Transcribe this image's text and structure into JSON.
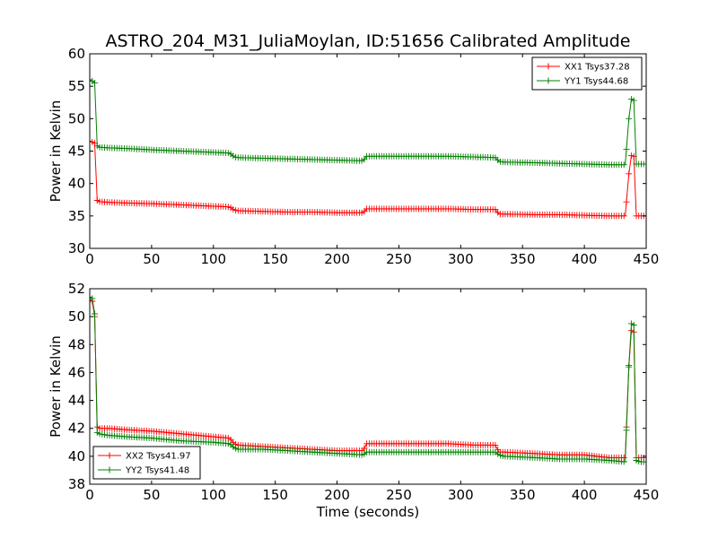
{
  "chart_data": [
    {
      "type": "line",
      "title": "ASTRO_204_M31_JuliaMoylan, ID:51656 Calibrated Amplitude",
      "xlabel": "",
      "ylabel": "Power in Kelvin",
      "xlim": [
        0,
        450
      ],
      "ylim": [
        30,
        60
      ],
      "xticks": [
        0,
        50,
        100,
        150,
        200,
        250,
        300,
        350,
        400,
        450
      ],
      "yticks": [
        30,
        35,
        40,
        45,
        50,
        55,
        60
      ],
      "grid": false,
      "legend_position": "top-right",
      "series": [
        {
          "name": "XX1 Tsys37.28",
          "color": "#ff0000",
          "x": [
            0,
            2,
            4,
            6,
            8,
            15,
            30,
            50,
            75,
            100,
            113,
            117,
            120,
            140,
            160,
            180,
            200,
            221,
            224,
            230,
            250,
            270,
            290,
            310,
            328,
            331,
            335,
            360,
            380,
            400,
            420,
            433,
            436,
            438,
            440,
            442,
            445,
            450
          ],
          "values": [
            46.5,
            46.4,
            46.2,
            37.4,
            37.2,
            37.1,
            37.0,
            36.9,
            36.7,
            36.5,
            36.4,
            35.9,
            35.8,
            35.7,
            35.6,
            35.6,
            35.5,
            35.5,
            36.1,
            36.1,
            36.1,
            36.1,
            36.1,
            36.0,
            36.0,
            35.3,
            35.3,
            35.2,
            35.2,
            35.1,
            35.0,
            35.0,
            41.5,
            44.3,
            44.2,
            35.0,
            35.0,
            35.0
          ]
        },
        {
          "name": "YY1 Tsys44.68",
          "color": "#008000",
          "x": [
            0,
            2,
            4,
            6,
            8,
            15,
            30,
            50,
            75,
            100,
            113,
            117,
            120,
            140,
            160,
            180,
            200,
            221,
            224,
            230,
            250,
            270,
            290,
            310,
            328,
            331,
            335,
            360,
            380,
            400,
            420,
            433,
            436,
            438,
            440,
            442,
            445,
            450
          ],
          "values": [
            56.0,
            55.8,
            55.5,
            45.8,
            45.6,
            45.5,
            45.4,
            45.2,
            45.0,
            44.8,
            44.7,
            44.1,
            44.0,
            43.9,
            43.8,
            43.7,
            43.6,
            43.5,
            44.2,
            44.2,
            44.2,
            44.2,
            44.2,
            44.1,
            44.0,
            43.4,
            43.3,
            43.2,
            43.1,
            43.0,
            42.9,
            42.9,
            50.0,
            53.0,
            52.8,
            43.0,
            43.0,
            43.0
          ]
        }
      ]
    },
    {
      "type": "line",
      "title": "",
      "xlabel": "Time (seconds)",
      "ylabel": "Power in Kelvin",
      "xlim": [
        0,
        450
      ],
      "ylim": [
        38,
        52
      ],
      "xticks": [
        0,
        50,
        100,
        150,
        200,
        250,
        300,
        350,
        400,
        450
      ],
      "yticks": [
        38,
        40,
        42,
        44,
        46,
        48,
        50,
        52
      ],
      "grid": false,
      "legend_position": "bottom-left",
      "series": [
        {
          "name": "XX2 Tsys41.97",
          "color": "#ff0000",
          "x": [
            0,
            2,
            4,
            6,
            8,
            15,
            30,
            50,
            75,
            100,
            113,
            117,
            120,
            140,
            160,
            180,
            200,
            221,
            224,
            230,
            250,
            270,
            290,
            310,
            328,
            331,
            335,
            360,
            380,
            400,
            420,
            433,
            436,
            438,
            440,
            442,
            445,
            450
          ],
          "values": [
            51.2,
            51.1,
            50.0,
            42.1,
            42.0,
            42.0,
            41.9,
            41.8,
            41.6,
            41.4,
            41.3,
            40.9,
            40.8,
            40.7,
            40.6,
            40.5,
            40.4,
            40.4,
            40.9,
            40.9,
            40.9,
            40.9,
            40.9,
            40.8,
            40.8,
            40.3,
            40.3,
            40.2,
            40.1,
            40.1,
            39.9,
            39.9,
            46.5,
            49.0,
            48.9,
            39.9,
            39.9,
            39.9
          ]
        },
        {
          "name": "YY2 Tsys41.48",
          "color": "#008000",
          "x": [
            0,
            2,
            4,
            6,
            8,
            15,
            30,
            50,
            75,
            100,
            113,
            117,
            120,
            140,
            160,
            180,
            200,
            221,
            224,
            230,
            250,
            270,
            290,
            310,
            328,
            331,
            335,
            360,
            380,
            400,
            420,
            433,
            436,
            438,
            440,
            442,
            445,
            450
          ],
          "values": [
            51.4,
            51.3,
            50.2,
            41.7,
            41.6,
            41.5,
            41.4,
            41.3,
            41.1,
            41.0,
            40.9,
            40.6,
            40.5,
            40.5,
            40.4,
            40.3,
            40.2,
            40.1,
            40.3,
            40.3,
            40.3,
            40.3,
            40.3,
            40.3,
            40.3,
            40.1,
            40.0,
            39.9,
            39.8,
            39.8,
            39.7,
            39.6,
            46.4,
            49.5,
            49.4,
            39.7,
            39.6,
            39.6
          ]
        }
      ]
    }
  ]
}
